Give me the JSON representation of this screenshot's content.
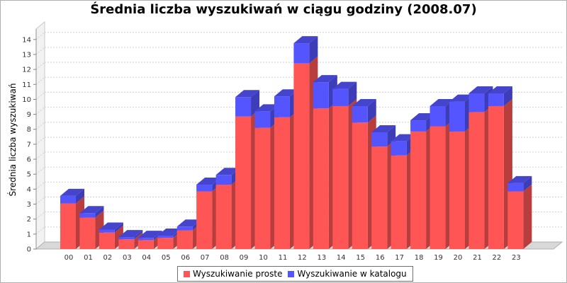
{
  "chart_data": {
    "type": "bar",
    "stacked": true,
    "three_d": true,
    "title": "Średnia liczba wyszukiwań w ciągu godziny (2008.07)",
    "xlabel": "",
    "ylabel": "Średnia liczba wyszukiwań",
    "ylim": [
      0,
      14.7
    ],
    "yticks": [
      0,
      1,
      2,
      3,
      4,
      5,
      6,
      7,
      8,
      9,
      10,
      11,
      12,
      13,
      14
    ],
    "grid": true,
    "legend_position": "bottom",
    "categories": [
      "00",
      "01",
      "02",
      "03",
      "04",
      "05",
      "06",
      "07",
      "08",
      "09",
      "10",
      "11",
      "12",
      "13",
      "14",
      "15",
      "16",
      "17",
      "18",
      "19",
      "20",
      "21",
      "22",
      "23"
    ],
    "series": [
      {
        "name": "Wyszukiwanie proste",
        "color": "#ff5555",
        "values": [
          3.05,
          2.1,
          1.1,
          0.65,
          0.6,
          0.75,
          1.25,
          3.85,
          4.3,
          8.85,
          8.1,
          8.8,
          12.4,
          9.4,
          9.55,
          8.45,
          6.85,
          6.25,
          7.85,
          8.2,
          7.85,
          9.15,
          9.55,
          3.85
        ]
      },
      {
        "name": "Wyszukiwanie w katalogu",
        "color": "#5555ff",
        "values": [
          0.5,
          0.3,
          0.2,
          0.15,
          0.15,
          0.15,
          0.25,
          0.45,
          0.65,
          1.3,
          1.1,
          1.4,
          1.35,
          1.75,
          1.15,
          1.1,
          0.95,
          0.95,
          0.75,
          1.35,
          2.0,
          1.25,
          0.85,
          0.55
        ]
      }
    ]
  }
}
